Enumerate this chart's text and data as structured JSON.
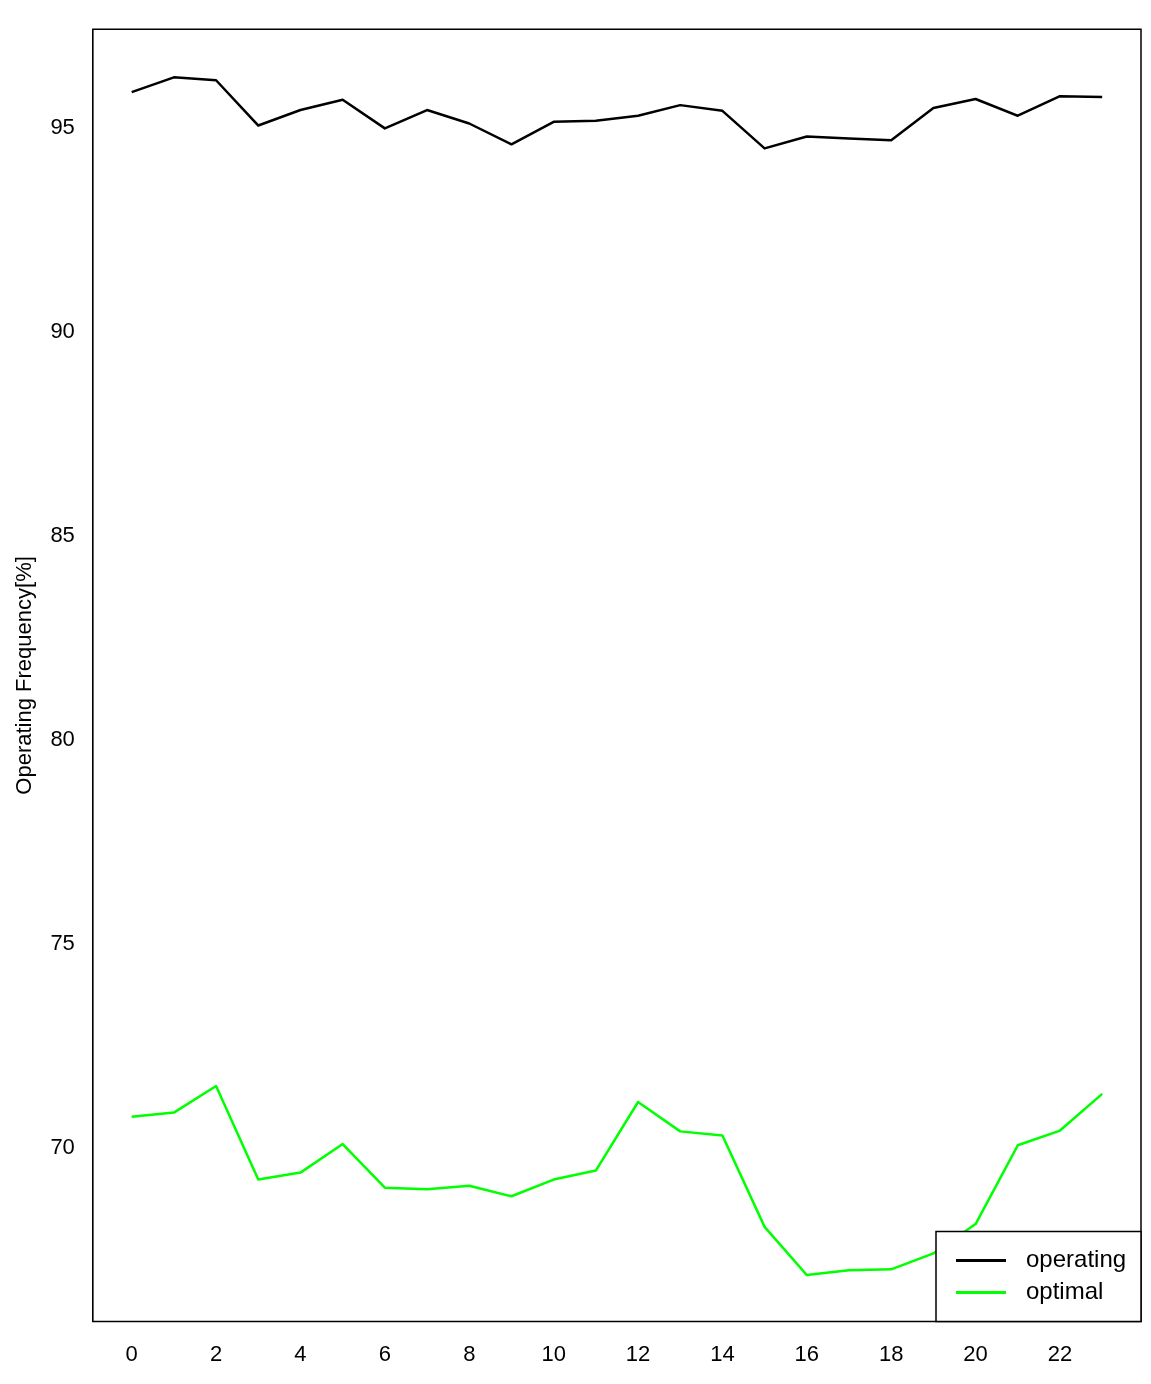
{
  "chart_data": {
    "type": "line",
    "ylabel": "Operating Frequency[%]",
    "x": [
      0,
      1,
      2,
      3,
      4,
      5,
      6,
      7,
      8,
      9,
      10,
      11,
      12,
      13,
      14,
      15,
      16,
      17,
      18,
      19,
      20,
      21,
      22,
      23
    ],
    "series": [
      {
        "name": "operating",
        "color": "#000000",
        "values": [
          95.87,
          96.23,
          96.16,
          95.05,
          95.43,
          95.68,
          94.98,
          95.43,
          95.1,
          94.59,
          95.14,
          95.17,
          95.29,
          95.55,
          95.41,
          94.49,
          94.78,
          94.73,
          94.69,
          95.48,
          95.7,
          95.29,
          95.77,
          95.75
        ]
      },
      {
        "name": "optimal",
        "color": "#00ff00",
        "values": [
          70.77,
          70.87,
          71.52,
          69.23,
          69.4,
          70.1,
          69.03,
          68.99,
          69.08,
          68.82,
          69.23,
          69.45,
          71.13,
          70.41,
          70.31,
          68.07,
          66.89,
          67.01,
          67.03,
          67.42,
          68.14,
          70.07,
          70.43,
          71.33
        ]
      }
    ],
    "xlim": [
      -0.92,
      23.92
    ],
    "ylim": [
      65.75,
      97.41
    ],
    "xticks": [
      0,
      2,
      4,
      6,
      8,
      10,
      12,
      14,
      16,
      18,
      20,
      22
    ],
    "yticks": [
      70,
      75,
      80,
      85,
      90,
      95
    ],
    "grid": false,
    "legend": "bottom right",
    "marker": "none",
    "line_style": "solid"
  }
}
